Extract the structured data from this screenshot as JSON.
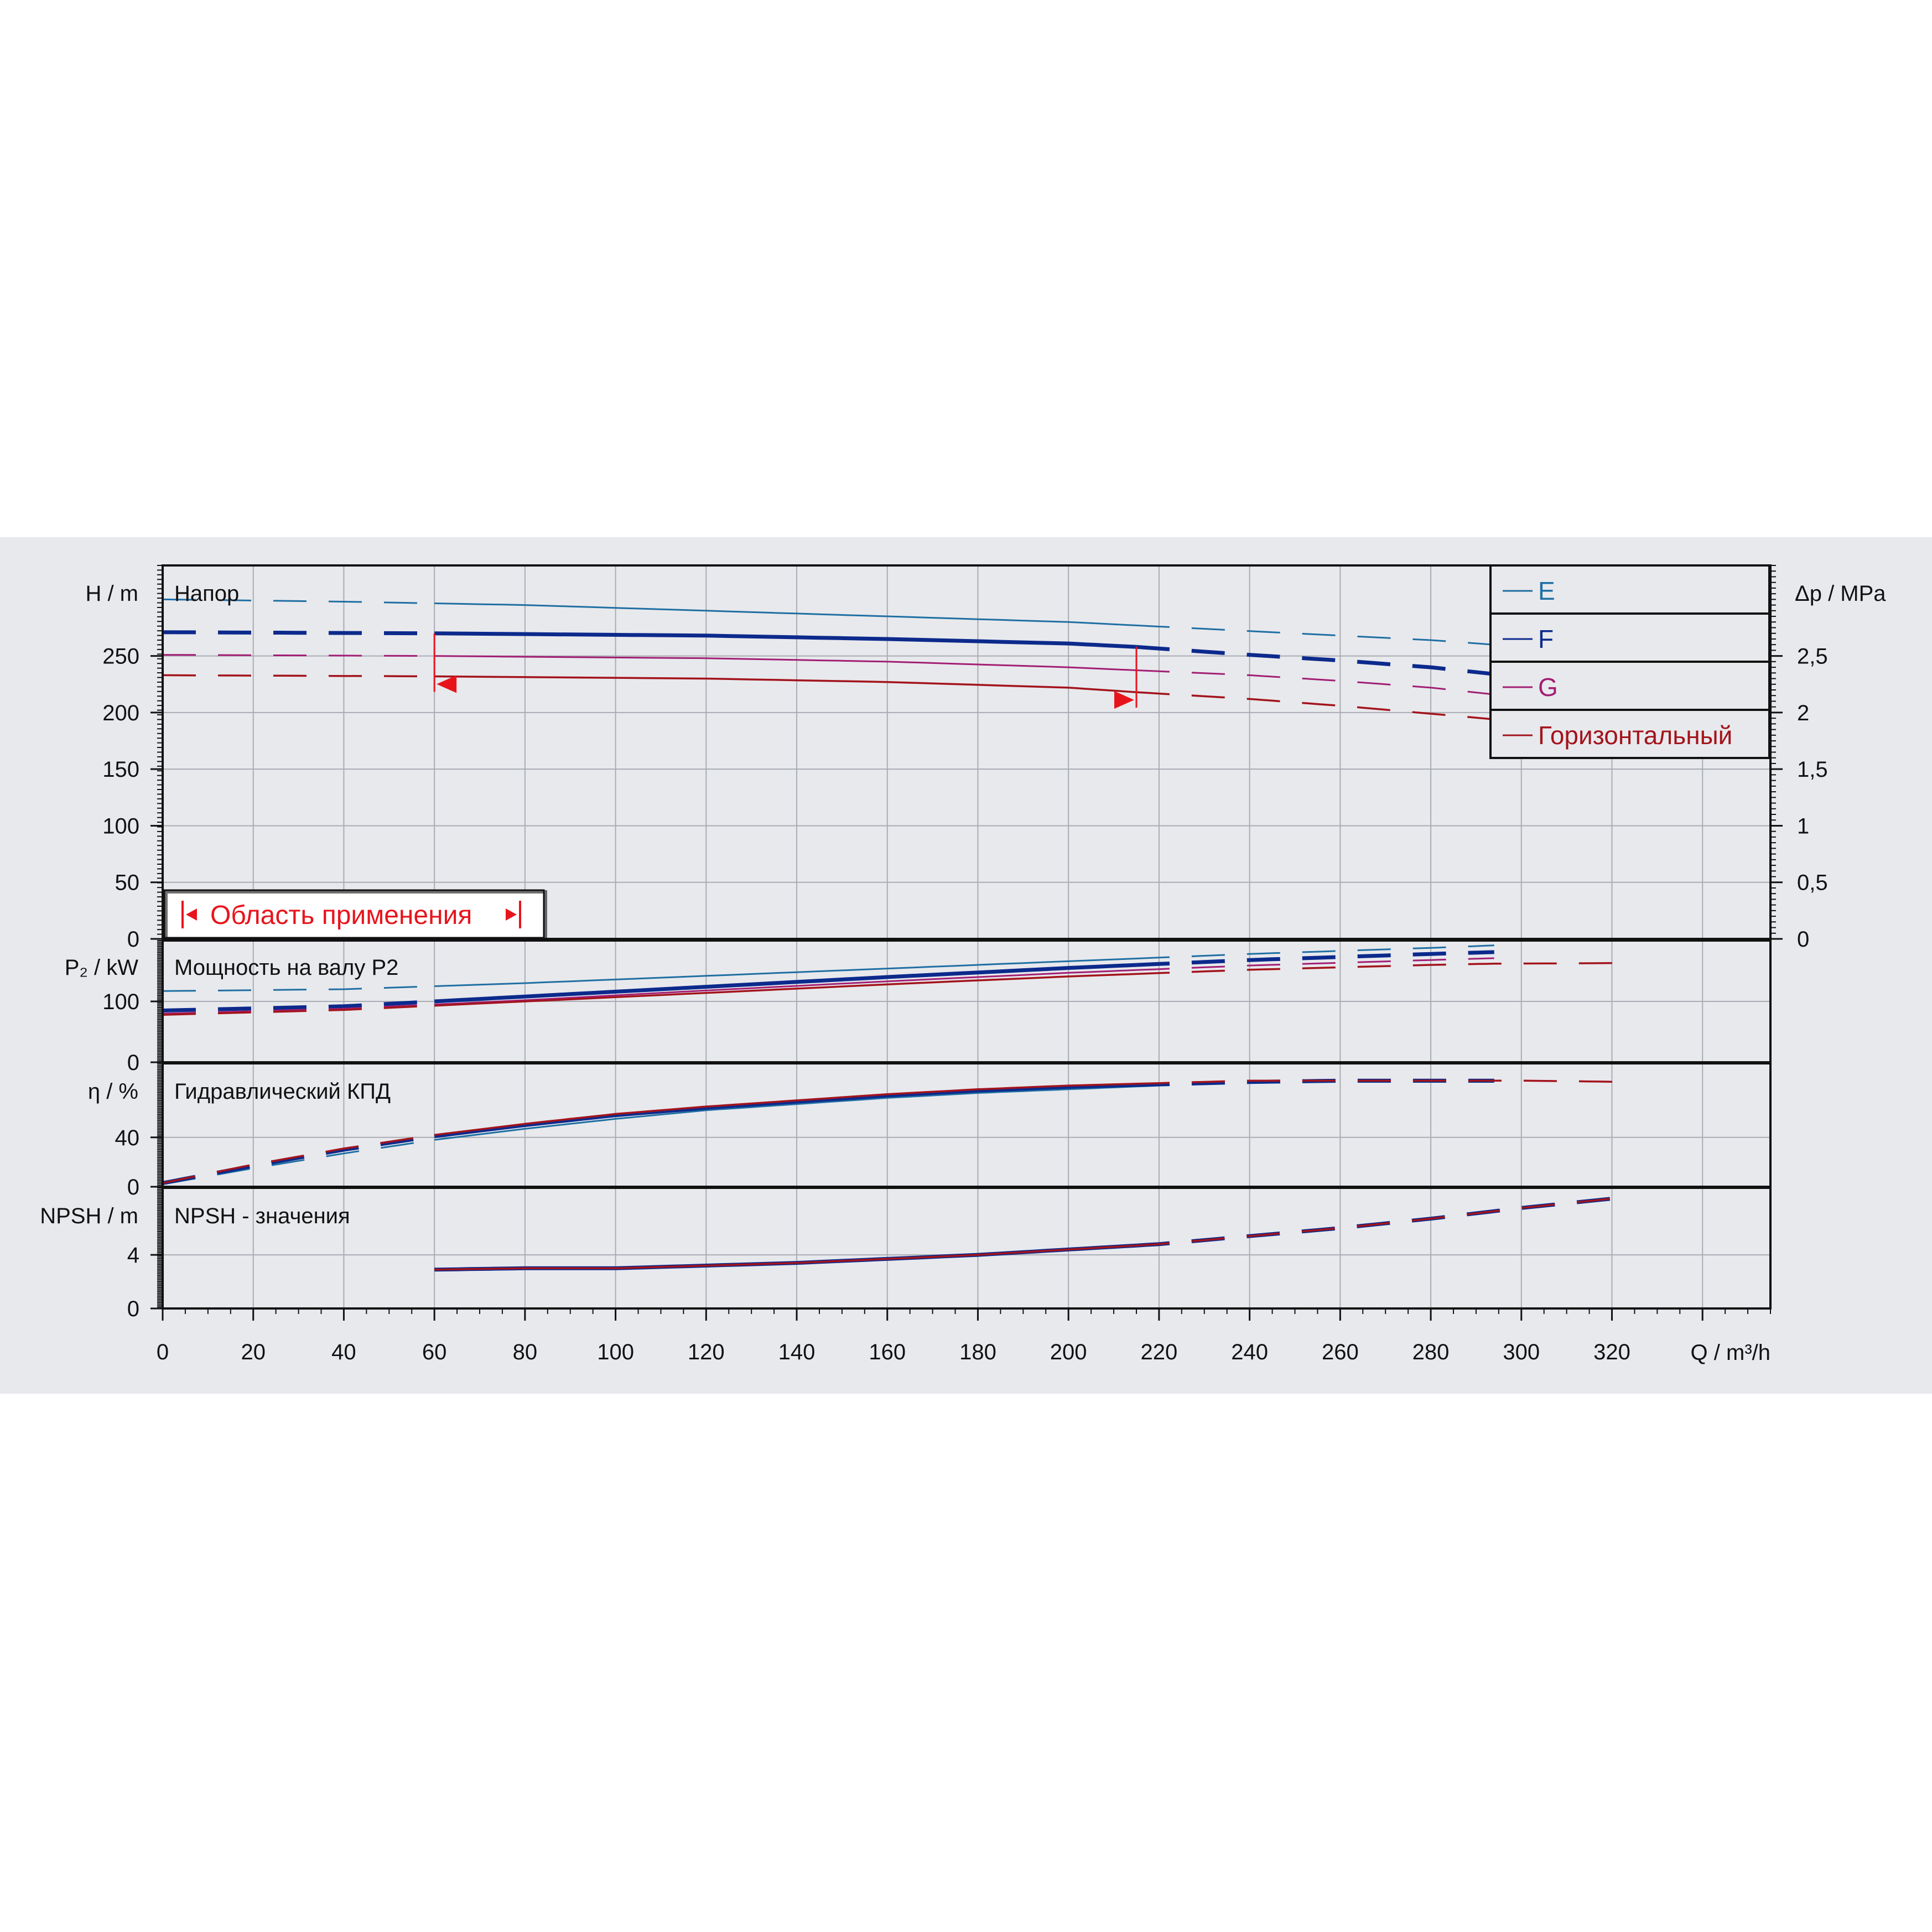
{
  "colors": {
    "E": "#1f6fa3",
    "F": "#0c2a8c",
    "G": "#a21e73",
    "horizontal": "#a3141c",
    "range": "#e8141c",
    "grid": "#a9acb3",
    "background": "#e8e9ed"
  },
  "axes": {
    "h_label": "H / m",
    "dp_label": "Δp / MPa",
    "p2_label": "P₂ / kW",
    "eta_label": "η / %",
    "npsh_label": "NPSH / m",
    "q_label": "Q / m³/h"
  },
  "panel_titles": {
    "head": "Напор",
    "power": "Мощность на валу P2",
    "efficiency": "Гидравлический КПД",
    "npsh": "NPSH - значения"
  },
  "legend": [
    {
      "key": "E",
      "label": "E",
      "color_key": "E"
    },
    {
      "key": "F",
      "label": "F",
      "color_key": "F"
    },
    {
      "key": "G",
      "label": "G",
      "color_key": "G"
    },
    {
      "key": "horizontal",
      "label": "Горизонтальный",
      "color_key": "horizontal"
    }
  ],
  "range_label": "Область применения",
  "chart_data": [
    {
      "type": "line",
      "title": "Напор",
      "xlabel": "Q / m³/h",
      "ylabel": "H / m",
      "y2label": "Δp / MPa",
      "xlim": [
        0,
        355
      ],
      "ylim": [
        0,
        330
      ],
      "y2lim": [
        0,
        3.3
      ],
      "x_ticks": [
        0,
        20,
        40,
        60,
        80,
        100,
        120,
        140,
        160,
        180,
        200,
        220,
        240,
        260,
        280,
        300,
        320
      ],
      "y_ticks": [
        0,
        50,
        100,
        150,
        200,
        250
      ],
      "y2_ticks": [
        "0",
        "0,5",
        "1",
        "1,5",
        "2",
        "2,5"
      ],
      "grid": true,
      "legend_position": "top-right",
      "operating_range": [
        60,
        215
      ],
      "series": [
        {
          "name": "E",
          "x": [
            0,
            40,
            80,
            120,
            160,
            200,
            240,
            260,
            280,
            294
          ],
          "y": [
            300,
            298,
            295,
            290,
            285,
            280,
            272,
            268,
            264,
            260
          ]
        },
        {
          "name": "F",
          "x": [
            0,
            60,
            120,
            160,
            200,
            215,
            240,
            260,
            280,
            294
          ],
          "y": [
            271,
            270,
            268,
            265,
            261,
            258,
            251,
            246,
            240,
            234
          ]
        },
        {
          "name": "G",
          "x": [
            0,
            60,
            120,
            160,
            200,
            240,
            260,
            280,
            294
          ],
          "y": [
            251,
            250,
            248,
            245,
            240,
            233,
            228,
            222,
            216
          ]
        },
        {
          "name": "Горизонтальный",
          "x": [
            0,
            60,
            120,
            160,
            200,
            215,
            240,
            260,
            280,
            294
          ],
          "y": [
            233,
            232,
            230,
            227,
            222,
            218,
            212,
            206,
            199,
            194
          ]
        }
      ]
    },
    {
      "type": "line",
      "title": "Мощность на валу P2",
      "xlabel": "Q / m³/h",
      "ylabel": "P₂ / kW",
      "ylim": [
        0,
        200
      ],
      "y_ticks": [
        0,
        100
      ],
      "series": [
        {
          "name": "E",
          "x": [
            0,
            40,
            80,
            120,
            160,
            200,
            240,
            280,
            294
          ],
          "y": [
            117,
            120,
            130,
            142,
            154,
            166,
            178,
            188,
            192
          ]
        },
        {
          "name": "F",
          "x": [
            0,
            40,
            80,
            120,
            160,
            200,
            240,
            280,
            294
          ],
          "y": [
            85,
            92,
            108,
            124,
            140,
            155,
            168,
            178,
            181
          ]
        },
        {
          "name": "G",
          "x": [
            0,
            40,
            80,
            120,
            160,
            200,
            240,
            280,
            294
          ],
          "y": [
            80,
            88,
            102,
            118,
            133,
            147,
            159,
            168,
            171
          ]
        },
        {
          "name": "Горизонтальный",
          "x": [
            0,
            40,
            80,
            120,
            160,
            200,
            240,
            280,
            294,
            323
          ],
          "y": [
            78,
            86,
            100,
            114,
            128,
            141,
            152,
            160,
            162,
            163
          ]
        }
      ]
    },
    {
      "type": "line",
      "title": "Гидравлический КПД",
      "xlabel": "Q / m³/h",
      "ylabel": "η / %",
      "ylim": [
        0,
        100
      ],
      "y_ticks": [
        0,
        40
      ],
      "series": [
        {
          "name": "E",
          "x": [
            0,
            20,
            40,
            60,
            80,
            100,
            120,
            140,
            160,
            180,
            200,
            220,
            240,
            260,
            280,
            294
          ],
          "y": [
            2,
            15,
            27,
            38,
            47,
            55,
            62,
            67,
            72,
            76,
            79,
            82,
            84,
            85,
            85,
            85
          ]
        },
        {
          "name": "F",
          "x": [
            0,
            20,
            40,
            60,
            80,
            100,
            120,
            140,
            160,
            180,
            200,
            220,
            240,
            260,
            280,
            294
          ],
          "y": [
            3,
            17,
            30,
            41,
            50,
            58,
            64,
            69,
            74,
            78,
            81,
            83,
            85,
            86,
            86,
            86
          ]
        },
        {
          "name": "G",
          "x": [
            0,
            20,
            40,
            60,
            80,
            100,
            120,
            140,
            160,
            180,
            200,
            220,
            240,
            260,
            280,
            294
          ],
          "y": [
            3,
            18,
            31,
            42,
            51,
            59,
            65,
            70,
            75,
            79,
            82,
            84,
            86,
            86,
            86,
            86
          ]
        },
        {
          "name": "Горизонтальный",
          "x": [
            0,
            20,
            40,
            60,
            80,
            100,
            120,
            140,
            160,
            180,
            200,
            220,
            240,
            260,
            280,
            300,
            323
          ],
          "y": [
            3,
            18,
            31,
            42,
            51,
            59,
            65,
            70,
            75,
            79,
            82,
            84,
            86,
            86,
            86,
            86,
            85
          ]
        }
      ]
    },
    {
      "type": "line",
      "title": "NPSH - значения",
      "xlabel": "Q / m³/h",
      "ylabel": "NPSH / m",
      "ylim": [
        0,
        9
      ],
      "y_ticks": [
        0,
        4
      ],
      "series": [
        {
          "name": "F",
          "x": [
            60,
            80,
            100,
            120,
            140,
            160,
            180,
            200,
            220,
            240,
            260,
            280,
            300,
            323
          ],
          "y": [
            2.9,
            3.0,
            3.0,
            3.2,
            3.4,
            3.7,
            4.0,
            4.4,
            4.8,
            5.4,
            6.0,
            6.7,
            7.5,
            8.3
          ]
        },
        {
          "name": "Горизонтальный",
          "x": [
            60,
            80,
            100,
            120,
            140,
            160,
            180,
            200,
            220,
            240,
            260,
            280,
            300,
            323
          ],
          "y": [
            2.9,
            3.0,
            3.0,
            3.2,
            3.4,
            3.7,
            4.0,
            4.4,
            4.8,
            5.4,
            6.0,
            6.7,
            7.5,
            8.3
          ]
        }
      ]
    }
  ]
}
